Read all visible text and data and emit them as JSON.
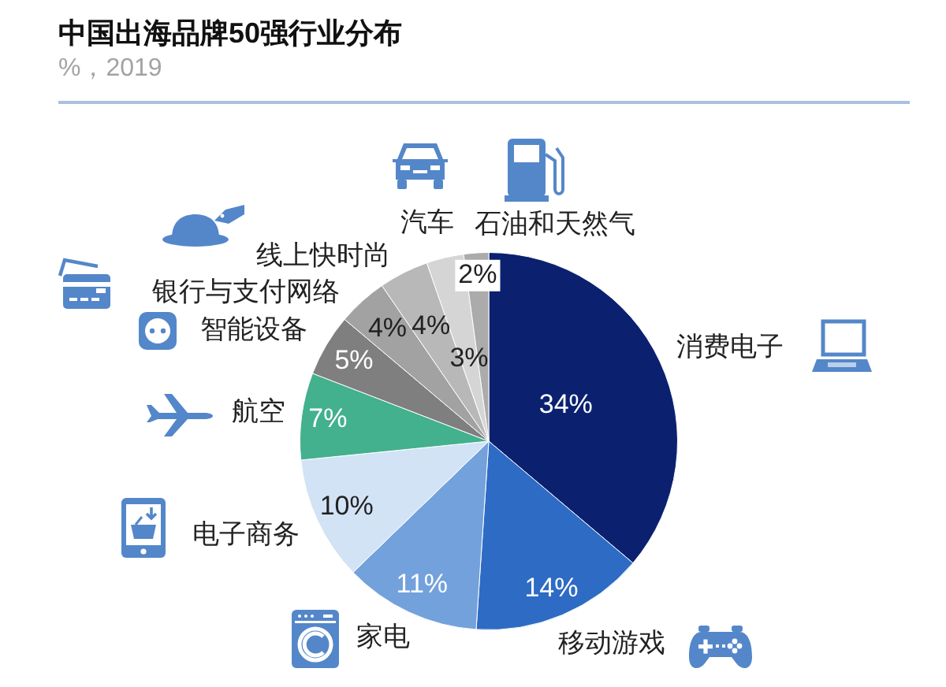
{
  "chart_data": {
    "type": "pie",
    "title": "中国出海品牌50强行业分布",
    "subtitle": "%，2019",
    "categories": [
      "消费电子",
      "移动游戏",
      "家电",
      "电子商务",
      "航空",
      "智能设备",
      "银行与支付网络",
      "线上快时尚",
      "汽车",
      "石油和天然气"
    ],
    "values": [
      34,
      14,
      11,
      10,
      7,
      5,
      4,
      4,
      3,
      2
    ],
    "colors": [
      "#0b2170",
      "#2e6bc4",
      "#73a1dc",
      "#d2e3f5",
      "#43b08e",
      "#7f7f7f",
      "#a2a2a2",
      "#b8b8b8",
      "#d5d5d5",
      "#ababab"
    ],
    "value_labels": [
      "34%",
      "14%",
      "11%",
      "10%",
      "7%",
      "5%",
      "4%",
      "4%",
      "3%",
      "2%"
    ]
  }
}
